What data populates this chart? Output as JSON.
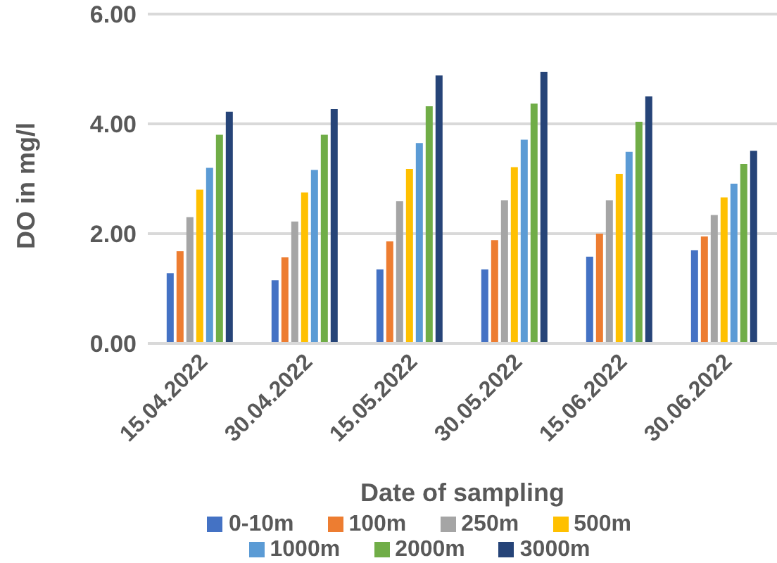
{
  "chart_data": {
    "type": "bar",
    "xlabel": "Date of sampling",
    "ylabel": "DO in mg/l",
    "categories": [
      "15.04.2022",
      "30.04.2022",
      "15.05.2022",
      "30.05.2022",
      "15.06.2022",
      "30.06.2022"
    ],
    "series": [
      {
        "name": "0-10m",
        "color": "#4472c4",
        "values": [
          1.28,
          1.15,
          1.35,
          1.35,
          1.58,
          1.7
        ]
      },
      {
        "name": "100m",
        "color": "#ed7d31",
        "values": [
          1.68,
          1.57,
          1.86,
          1.88,
          2.0,
          1.95
        ]
      },
      {
        "name": "250m",
        "color": "#a5a5a5",
        "values": [
          2.3,
          2.22,
          2.59,
          2.61,
          2.61,
          2.34
        ]
      },
      {
        "name": "500m",
        "color": "#ffc000",
        "values": [
          2.8,
          2.75,
          3.18,
          3.21,
          3.09,
          2.66
        ]
      },
      {
        "name": "1000m",
        "color": "#5b9bd5",
        "values": [
          3.2,
          3.16,
          3.65,
          3.71,
          3.49,
          2.91
        ]
      },
      {
        "name": "2000m",
        "color": "#70ad47",
        "values": [
          3.8,
          3.8,
          4.32,
          4.37,
          4.04,
          3.27
        ]
      },
      {
        "name": "3000m",
        "color": "#264478",
        "values": [
          4.22,
          4.27,
          4.88,
          4.95,
          4.5,
          3.51
        ]
      }
    ],
    "ylim": [
      0,
      6
    ],
    "yticks": [
      {
        "value": 0,
        "label": "0.00"
      },
      {
        "value": 2,
        "label": "2.00"
      },
      {
        "value": 4,
        "label": "4.00"
      },
      {
        "value": 6,
        "label": "6.00"
      }
    ],
    "grid": "y",
    "legend": "bottom"
  }
}
